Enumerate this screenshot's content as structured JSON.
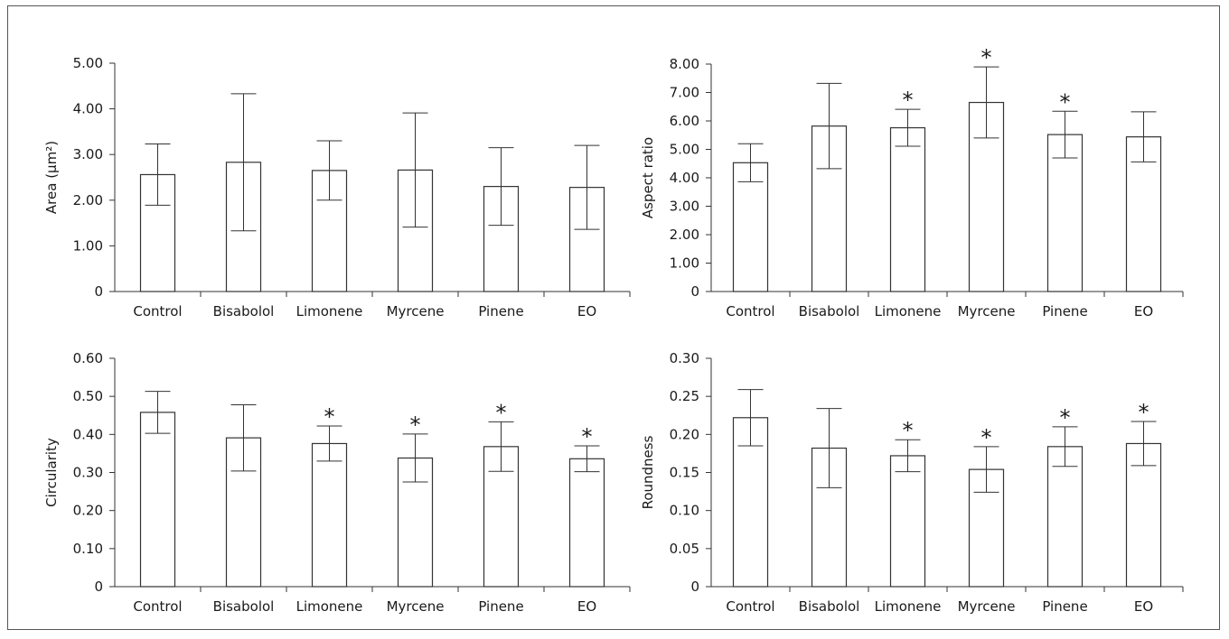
{
  "chart_data": [
    {
      "type": "bar",
      "ylabel": "Area (μm²)",
      "categories": [
        "Control",
        "Bisabolol",
        "Limonene",
        "Myrcene",
        "Pinene",
        "EO"
      ],
      "values": [
        2.56,
        2.83,
        2.65,
        2.66,
        2.3,
        2.28
      ],
      "errors": [
        0.67,
        1.5,
        0.65,
        1.25,
        0.85,
        0.92
      ],
      "significant": [
        false,
        false,
        false,
        false,
        false,
        false
      ],
      "ylim": [
        0,
        5
      ],
      "ticks": [
        "0",
        "1.00",
        "2.00",
        "3.00",
        "4.00",
        "5.00"
      ],
      "tick_values": [
        0,
        1,
        2,
        3,
        4,
        5
      ],
      "marker": "*",
      "grid": false,
      "position": "top-left"
    },
    {
      "type": "bar",
      "ylabel": "Aspect ratio",
      "categories": [
        "Control",
        "Bisabolol",
        "Limonene",
        "Myrcene",
        "Pinene",
        "EO"
      ],
      "values": [
        4.53,
        5.82,
        5.76,
        6.65,
        5.52,
        5.44
      ],
      "errors": [
        0.67,
        1.5,
        0.65,
        1.25,
        0.82,
        0.88
      ],
      "significant": [
        false,
        false,
        true,
        true,
        true,
        false
      ],
      "ylim": [
        0,
        8
      ],
      "ticks": [
        "0",
        "1.00",
        "2.00",
        "3.00",
        "4.00",
        "5.00",
        "6.00",
        "7.00",
        "8.00"
      ],
      "tick_values": [
        0,
        1,
        2,
        3,
        4,
        5,
        6,
        7,
        8
      ],
      "marker": "*",
      "grid": false,
      "position": "top-right"
    },
    {
      "type": "bar",
      "ylabel": "Circularity",
      "categories": [
        "Control",
        "Bisabolol",
        "Limonene",
        "Myrcene",
        "Pinene",
        "EO"
      ],
      "values": [
        0.458,
        0.391,
        0.376,
        0.338,
        0.368,
        0.336
      ],
      "errors": [
        0.055,
        0.087,
        0.046,
        0.063,
        0.065,
        0.034
      ],
      "significant": [
        false,
        false,
        true,
        true,
        true,
        true
      ],
      "ylim": [
        0,
        0.6
      ],
      "ticks": [
        "0",
        "0.10",
        "0.20",
        "0.30",
        "0.40",
        "0.50",
        "0.60"
      ],
      "tick_values": [
        0,
        0.1,
        0.2,
        0.3,
        0.4,
        0.5,
        0.6
      ],
      "marker": "*",
      "grid": false,
      "position": "bottom-left"
    },
    {
      "type": "bar",
      "ylabel": "Roundness",
      "categories": [
        "Control",
        "Bisabolol",
        "Limonene",
        "Myrcene",
        "Pinene",
        "EO"
      ],
      "values": [
        0.222,
        0.182,
        0.172,
        0.154,
        0.184,
        0.188
      ],
      "errors": [
        0.037,
        0.052,
        0.021,
        0.03,
        0.026,
        0.029
      ],
      "significant": [
        false,
        false,
        true,
        true,
        true,
        true
      ],
      "ylim": [
        0,
        0.3
      ],
      "ticks": [
        "0",
        "0.05",
        "0.10",
        "0.15",
        "0.20",
        "0.25",
        "0.30"
      ],
      "tick_values": [
        0,
        0.05,
        0.1,
        0.15,
        0.2,
        0.25,
        0.3
      ],
      "marker": "*",
      "grid": false,
      "position": "bottom-right"
    }
  ]
}
